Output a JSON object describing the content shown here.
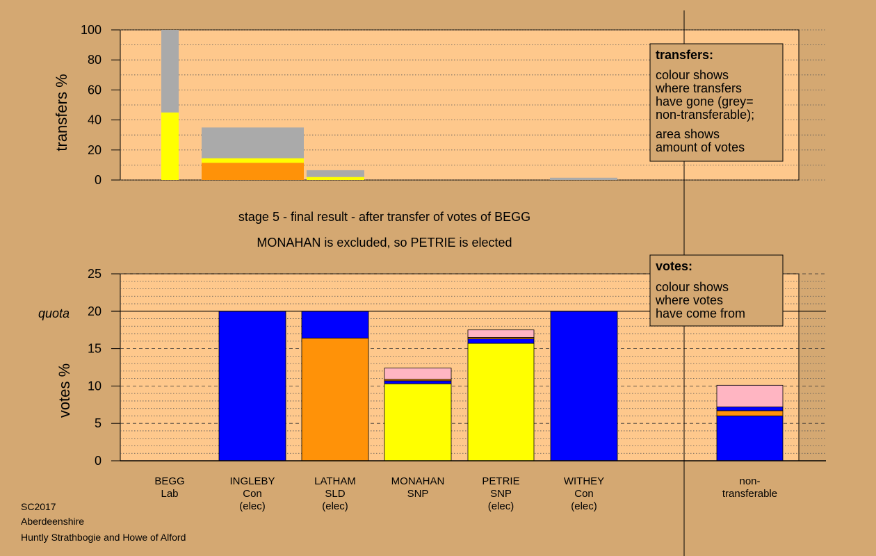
{
  "colors": {
    "background": "#d4a872",
    "plot_bg": "#fec88c",
    "yellow": "#ffff00",
    "orange": "#ff9208",
    "blue": "#0000ff",
    "pink": "#ffb5c2",
    "grey": "#aaaaaa"
  },
  "footer": [
    "SC2017",
    "Aberdeenshire",
    "Huntly Strathbogie and Howe of Alford"
  ],
  "chart_data": [
    {
      "type": "bar",
      "id": "transfers",
      "ylabel": "transfers %",
      "ylim": [
        0,
        100
      ],
      "yticks": [
        "0",
        "20",
        "40",
        "60",
        "80",
        "100"
      ],
      "legend": {
        "title": "transfers:",
        "lines1": [
          "colour shows",
          "where transfers",
          "have gone (grey=",
          "non-transferable);"
        ],
        "lines2": [
          "area shows",
          "amount of votes"
        ]
      },
      "columns": [
        {
          "segments": [
            {
              "color": "yellow",
              "value": 45
            },
            {
              "color": "grey",
              "value": 55
            }
          ]
        },
        {
          "segments": [
            {
              "color": "orange",
              "value": 11.5
            },
            {
              "color": "yellow",
              "value": 3
            },
            {
              "color": "grey",
              "value": 20.5
            }
          ]
        },
        {
          "segments": [
            {
              "color": "yellow",
              "value": 2
            },
            {
              "color": "grey",
              "value": 4.5
            }
          ]
        },
        {
          "segments": []
        },
        {
          "segments": []
        },
        {
          "segments": [
            {
              "color": "grey",
              "value": 1.5
            }
          ]
        }
      ]
    },
    {
      "type": "bar",
      "id": "votes",
      "title_line1": "stage 5 - final result - after transfer of votes of BEGG",
      "title_line2": "MONAHAN is excluded, so PETRIE is elected",
      "ylabel": "votes %",
      "ylim": [
        0,
        25
      ],
      "yticks": [
        "0",
        "5",
        "10",
        "15",
        "20",
        "25"
      ],
      "quota_label": "quota",
      "quota_value": 20,
      "legend": {
        "title": "votes:",
        "lines": [
          "colour shows",
          "where votes",
          "have come from"
        ]
      },
      "categories": [
        {
          "name": "BEGG",
          "party": "Lab",
          "status": ""
        },
        {
          "name": "INGLEBY",
          "party": "Con",
          "status": "(elec)"
        },
        {
          "name": "LATHAM",
          "party": "SLD",
          "status": "(elec)"
        },
        {
          "name": "MONAHAN",
          "party": "SNP",
          "status": ""
        },
        {
          "name": "PETRIE",
          "party": "SNP",
          "status": "(elec)"
        },
        {
          "name": "WITHEY",
          "party": "Con",
          "status": "(elec)"
        },
        {
          "name": "non-",
          "party": "transferable",
          "status": ""
        }
      ],
      "columns": [
        {
          "segments": []
        },
        {
          "segments": [
            {
              "color": "blue",
              "value": 20
            }
          ]
        },
        {
          "segments": [
            {
              "color": "orange",
              "value": 16.4
            },
            {
              "color": "blue",
              "value": 3.6
            }
          ]
        },
        {
          "segments": [
            {
              "color": "yellow",
              "value": 10.3
            },
            {
              "color": "blue",
              "value": 0.4
            },
            {
              "color": "orange",
              "value": 0.2
            },
            {
              "color": "pink",
              "value": 1.5
            }
          ]
        },
        {
          "segments": [
            {
              "color": "yellow",
              "value": 15.7
            },
            {
              "color": "blue",
              "value": 0.6
            },
            {
              "color": "orange",
              "value": 0.2
            },
            {
              "color": "pink",
              "value": 1.0
            }
          ]
        },
        {
          "segments": [
            {
              "color": "blue",
              "value": 20
            }
          ]
        },
        {
          "segments": [
            {
              "color": "blue",
              "value": 6.0
            },
            {
              "color": "orange",
              "value": 0.7
            },
            {
              "color": "blue",
              "value": 0.5
            },
            {
              "color": "pink",
              "value": 2.9
            }
          ]
        }
      ]
    }
  ]
}
